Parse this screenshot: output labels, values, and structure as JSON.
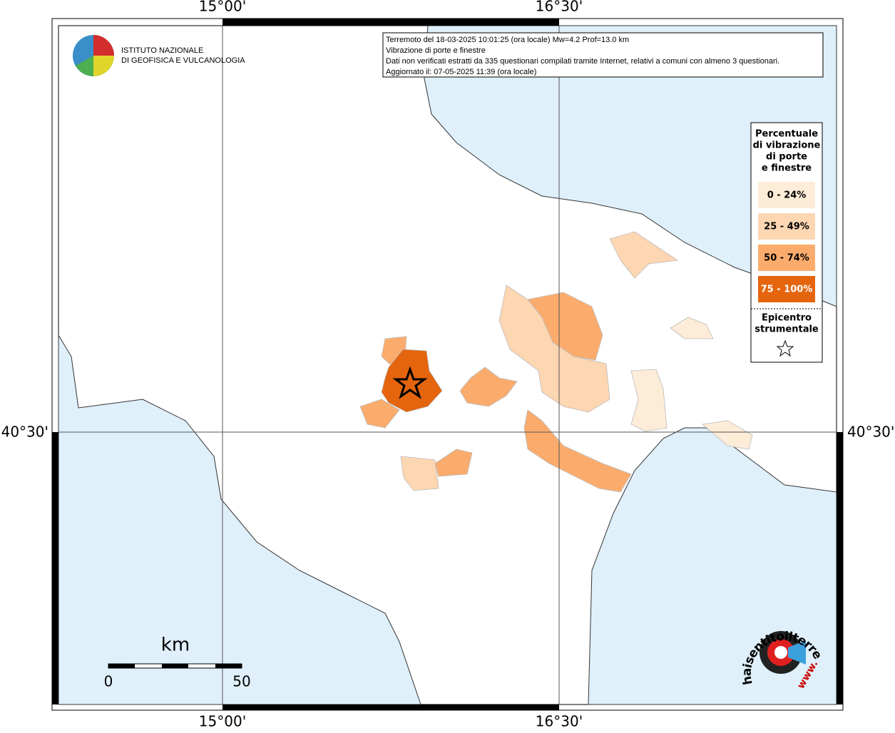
{
  "map": {
    "coordinates": {
      "top": [
        "15°00'",
        "16°30'"
      ],
      "bottom": [
        "15°00'",
        "16°30'"
      ],
      "left": [
        "40°30'"
      ],
      "right": [
        "40°30'"
      ]
    }
  },
  "logo": {
    "lines": [
      "ISTITUTO NAZIONALE",
      "DI GEOFISICA E VULCANOLOGIA"
    ]
  },
  "info": {
    "lines": [
      "Terremoto del 18-03-2025 10:01:25 (ora locale) Mw=4.2 Prof=13.0 km",
      "Vibrazione di porte e finestre",
      "Dati non verificati estratti da 335 questionari compilati tramite Internet, relativi a comuni con almeno 3 questionari.",
      "Aggiornato il: 07-05-2025 11:39 (ora locale)"
    ]
  },
  "legend": {
    "title": [
      "Percentuale",
      "di vibrazione",
      "di porte",
      "e finestre"
    ],
    "classes": [
      {
        "label": "0 - 24%",
        "color": "#fdecd8"
      },
      {
        "label": "25 - 49%",
        "color": "#fdd6b2"
      },
      {
        "label": "50 - 74%",
        "color": "#fbac6c"
      },
      {
        "label": "75 - 100%",
        "color": "#e4650e"
      }
    ],
    "epicenter": [
      "Epicentro",
      "strumentale"
    ]
  },
  "scale": {
    "unit": "km",
    "labels": [
      "0",
      "50"
    ]
  },
  "brand": {
    "text": "haisentitoilterremoto.it",
    "www": "www."
  }
}
